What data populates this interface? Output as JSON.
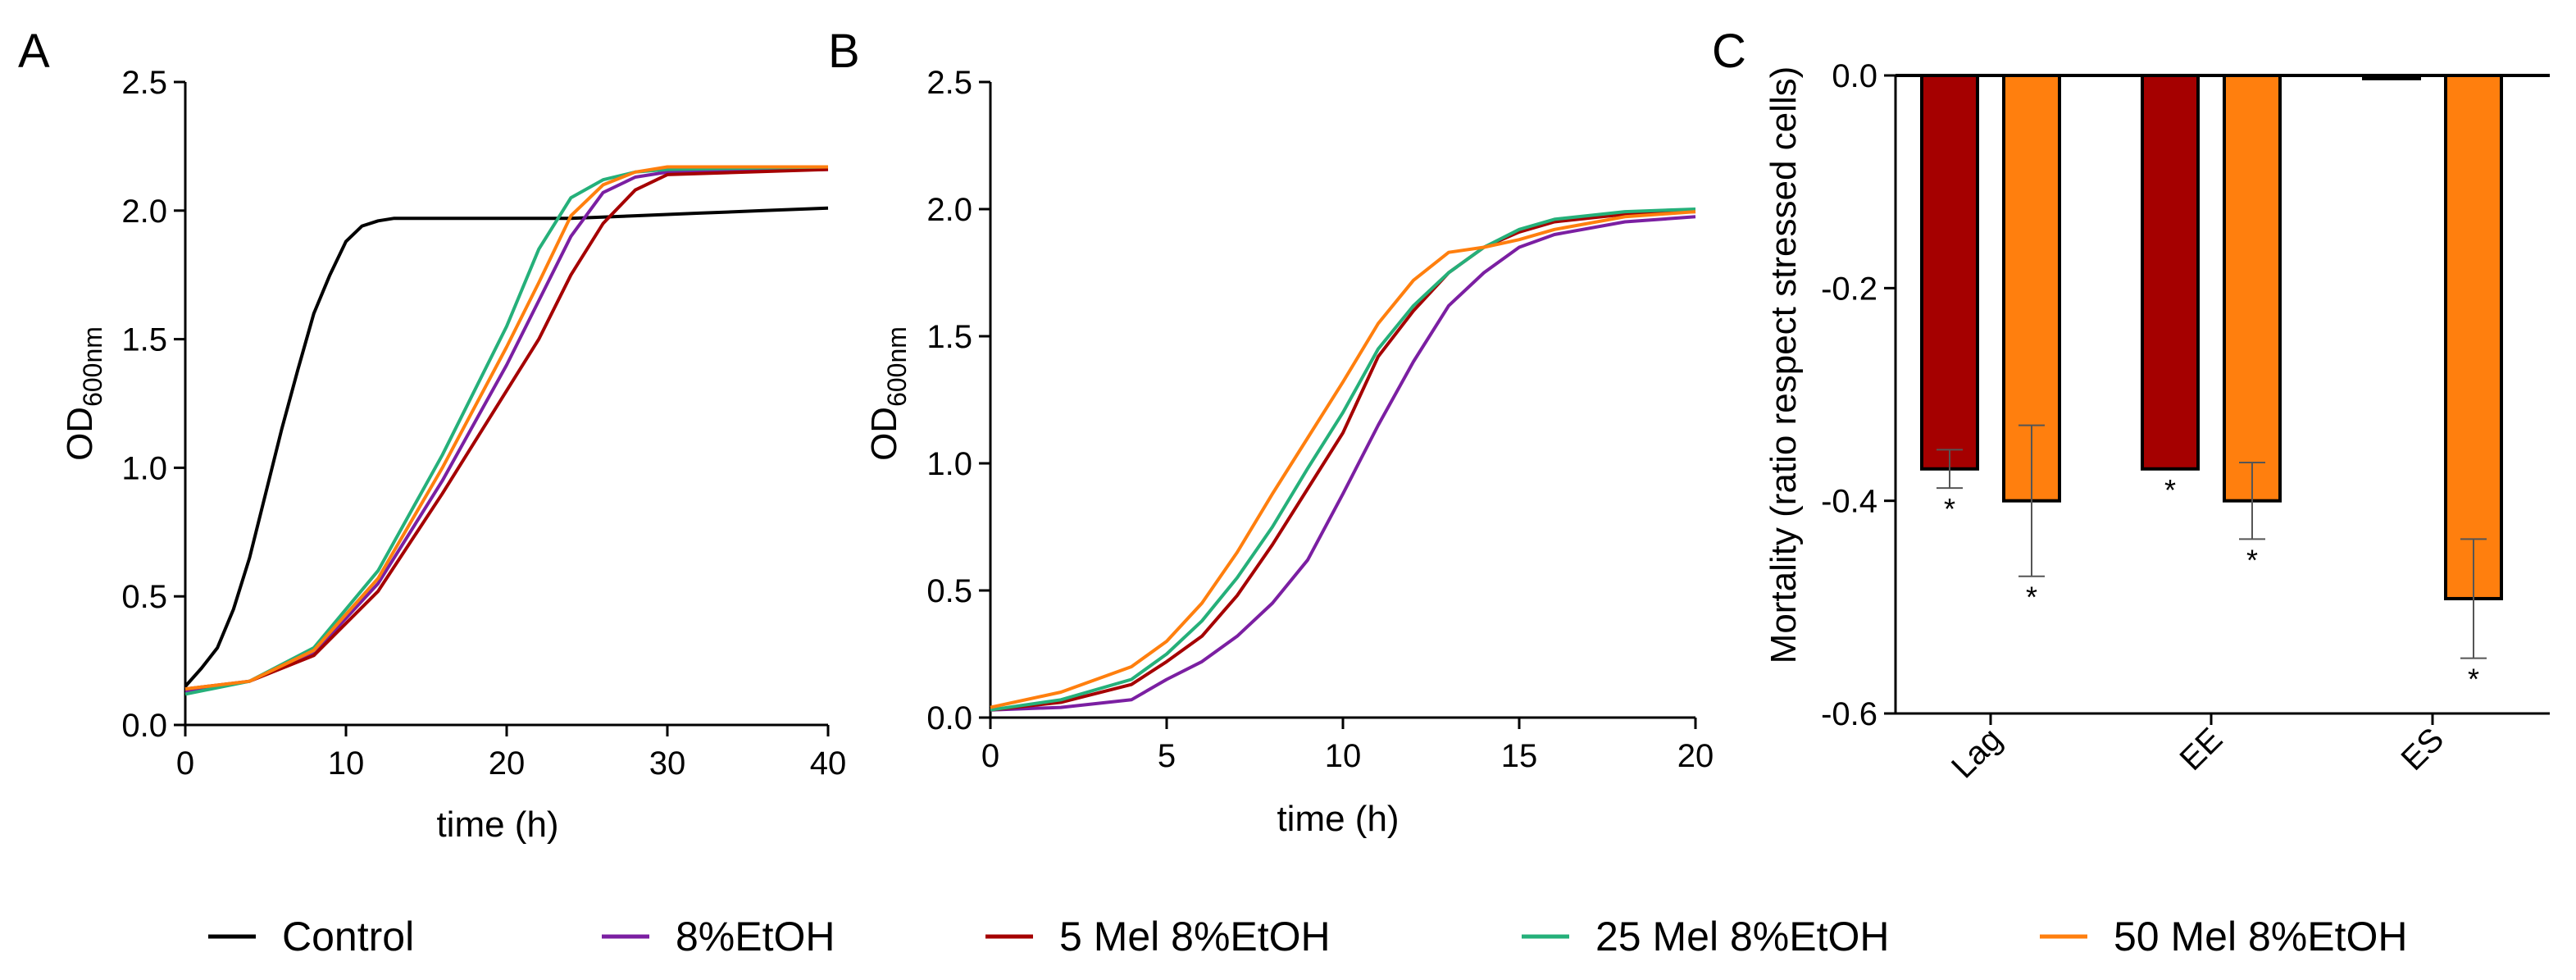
{
  "colors": {
    "control": "#000000",
    "etoh": "#7b1fa2",
    "mel5": "#a50000",
    "mel25": "#25b07a",
    "mel50": "#ff7f0e"
  },
  "legend": [
    {
      "key": "control",
      "label": "Control"
    },
    {
      "key": "etoh",
      "label": "8%EtOH"
    },
    {
      "key": "mel5",
      "label": "5 Mel 8%EtOH"
    },
    {
      "key": "mel25",
      "label": "25 Mel 8%EtOH"
    },
    {
      "key": "mel50",
      "label": "50 Mel 8%EtOH"
    }
  ],
  "chart_data": [
    {
      "panel": "A",
      "type": "line",
      "title": "",
      "xlabel": "time (h)",
      "ylabel_main": "OD",
      "ylabel_sub": "600nm",
      "xlim": [
        0,
        40
      ],
      "ylim": [
        0,
        2.5
      ],
      "xticks": [
        "0",
        "10",
        "20",
        "30",
        "40"
      ],
      "yticks": [
        "0.0",
        "0.5",
        "1.0",
        "1.5",
        "2.0",
        "2.5"
      ],
      "series": [
        {
          "key": "control",
          "name": "Control",
          "x": [
            0,
            1,
            2,
            3,
            4,
            5,
            6,
            7,
            8,
            9,
            10,
            11,
            12,
            13,
            14,
            16,
            20,
            24,
            28,
            32,
            36,
            40
          ],
          "y": [
            0.15,
            0.22,
            0.3,
            0.45,
            0.65,
            0.9,
            1.15,
            1.38,
            1.6,
            1.75,
            1.88,
            1.94,
            1.96,
            1.97,
            1.97,
            1.97,
            1.97,
            1.97,
            1.98,
            1.99,
            2.0,
            2.01
          ]
        },
        {
          "key": "etoh",
          "name": "8%EtOH",
          "x": [
            0,
            4,
            8,
            12,
            16,
            20,
            22,
            24,
            26,
            28,
            30,
            40
          ],
          "y": [
            0.13,
            0.17,
            0.28,
            0.55,
            0.95,
            1.4,
            1.65,
            1.9,
            2.07,
            2.13,
            2.15,
            2.16
          ]
        },
        {
          "key": "mel5",
          "name": "5 Mel 8%EtOH",
          "x": [
            0,
            4,
            8,
            12,
            16,
            20,
            22,
            24,
            26,
            28,
            30,
            40
          ],
          "y": [
            0.14,
            0.17,
            0.27,
            0.52,
            0.9,
            1.3,
            1.5,
            1.75,
            1.95,
            2.08,
            2.14,
            2.16
          ]
        },
        {
          "key": "mel25",
          "name": "25 Mel 8%EtOH",
          "x": [
            0,
            4,
            8,
            12,
            16,
            20,
            22,
            24,
            26,
            28,
            30,
            40
          ],
          "y": [
            0.12,
            0.17,
            0.3,
            0.6,
            1.05,
            1.55,
            1.85,
            2.05,
            2.12,
            2.15,
            2.16,
            2.17
          ]
        },
        {
          "key": "mel50",
          "name": "50 Mel 8%EtOH",
          "x": [
            0,
            4,
            8,
            12,
            16,
            20,
            22,
            24,
            26,
            28,
            30,
            40
          ],
          "y": [
            0.14,
            0.17,
            0.29,
            0.57,
            1.0,
            1.47,
            1.72,
            1.98,
            2.1,
            2.15,
            2.17,
            2.17
          ]
        }
      ]
    },
    {
      "panel": "B",
      "type": "line",
      "title": "",
      "xlabel": "time (h)",
      "ylabel_main": "OD",
      "ylabel_sub": "600nm",
      "xlim": [
        0,
        20
      ],
      "ylim": [
        0,
        2.5
      ],
      "xticks": [
        "0",
        "5",
        "10",
        "15",
        "20"
      ],
      "yticks": [
        "0.0",
        "0.5",
        "1.0",
        "1.5",
        "2.0",
        "2.5"
      ],
      "series": [
        {
          "key": "etoh",
          "name": "8%EtOH",
          "x": [
            0,
            2,
            4,
            5,
            6,
            7,
            8,
            9,
            10,
            11,
            12,
            13,
            14,
            15,
            16,
            18,
            20
          ],
          "y": [
            0.03,
            0.04,
            0.07,
            0.15,
            0.22,
            0.32,
            0.45,
            0.62,
            0.88,
            1.15,
            1.4,
            1.62,
            1.75,
            1.85,
            1.9,
            1.95,
            1.97
          ]
        },
        {
          "key": "mel5",
          "name": "5 Mel 8%EtOH",
          "x": [
            0,
            2,
            4,
            5,
            6,
            7,
            8,
            9,
            10,
            11,
            12,
            13,
            14,
            15,
            16,
            18,
            20
          ],
          "y": [
            0.03,
            0.06,
            0.13,
            0.22,
            0.32,
            0.48,
            0.68,
            0.9,
            1.12,
            1.42,
            1.6,
            1.75,
            1.85,
            1.91,
            1.95,
            1.98,
            1.99
          ]
        },
        {
          "key": "mel25",
          "name": "25 Mel 8%EtOH",
          "x": [
            0,
            2,
            4,
            5,
            6,
            7,
            8,
            9,
            10,
            11,
            12,
            13,
            14,
            15,
            16,
            18,
            20
          ],
          "y": [
            0.03,
            0.07,
            0.15,
            0.25,
            0.38,
            0.55,
            0.75,
            0.98,
            1.2,
            1.45,
            1.62,
            1.75,
            1.85,
            1.92,
            1.96,
            1.99,
            2.0
          ]
        },
        {
          "key": "mel50",
          "name": "50 Mel 8%EtOH",
          "x": [
            0,
            2,
            4,
            5,
            6,
            7,
            8,
            9,
            10,
            11,
            12,
            13,
            14,
            15,
            16,
            18,
            20
          ],
          "y": [
            0.04,
            0.1,
            0.2,
            0.3,
            0.45,
            0.65,
            0.88,
            1.1,
            1.32,
            1.55,
            1.72,
            1.83,
            1.85,
            1.88,
            1.92,
            1.97,
            1.99
          ]
        }
      ]
    },
    {
      "panel": "C",
      "type": "bar",
      "title": "",
      "xlabel": "",
      "ylabel": "Mortality (ratio respect stressed cells)",
      "ylim": [
        -0.6,
        0.0
      ],
      "yticks": [
        "0.0",
        "-0.2",
        "-0.4",
        "-0.6"
      ],
      "categories": [
        "Lag",
        "EE",
        "ES"
      ],
      "series": [
        {
          "key": "mel5",
          "name": "5 Mel 8%EtOH",
          "values": [
            -0.37,
            -0.37,
            -0.003
          ],
          "errors": [
            0.018,
            0.0,
            0.0
          ],
          "significance": [
            "*",
            "*",
            ""
          ]
        },
        {
          "key": "mel50",
          "name": "50 Mel 8%EtOH",
          "values": [
            -0.4,
            -0.4,
            -0.492
          ],
          "errors": [
            0.071,
            0.036,
            0.056
          ],
          "significance": [
            "*",
            "*",
            "*"
          ]
        }
      ]
    }
  ]
}
